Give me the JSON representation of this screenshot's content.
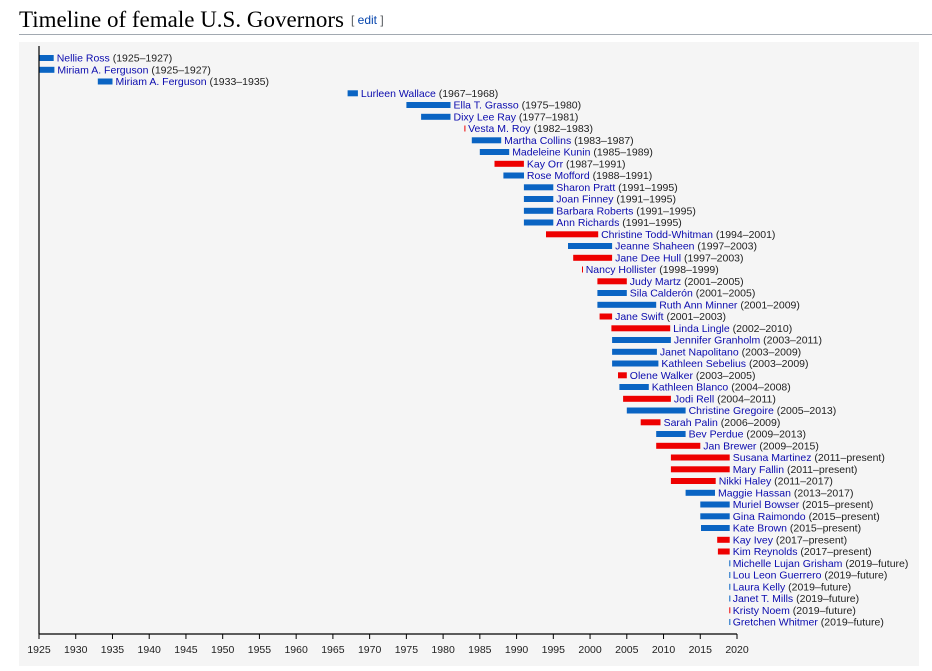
{
  "heading": {
    "title": "Timeline of female U.S. Governors",
    "edit_open": "[ ",
    "edit_label": "edit",
    "edit_close": " ]"
  },
  "colors": {
    "democrat": "#0a64c3",
    "republican": "#ee0000",
    "link": "#0b0bae",
    "text": "#222222"
  },
  "chart_data": {
    "type": "bar",
    "subtype": "timeline-gantt",
    "title": "Timeline of female U.S. Governors",
    "xlabel": "",
    "ylabel": "",
    "xlim": [
      1925,
      2020
    ],
    "xticks": [
      1925,
      1930,
      1935,
      1940,
      1945,
      1950,
      1955,
      1960,
      1965,
      1970,
      1975,
      1980,
      1985,
      1990,
      1995,
      2000,
      2005,
      2010,
      2015,
      2020
    ],
    "grid": false,
    "legend": "none",
    "series": [
      {
        "name": "Nellie Ross",
        "label": "(1925–1927)",
        "start": 1925.0,
        "end": 1927.0,
        "party": "democrat"
      },
      {
        "name": "Miriam A. Ferguson",
        "label": "(1925–1927)",
        "start": 1925.0,
        "end": 1927.1,
        "party": "democrat"
      },
      {
        "name": "Miriam A. Ferguson",
        "label": "(1933–1935)",
        "start": 1933.0,
        "end": 1935.0,
        "party": "democrat"
      },
      {
        "name": "Lurleen Wallace",
        "label": "(1967–1968)",
        "start": 1967.0,
        "end": 1968.4,
        "party": "democrat"
      },
      {
        "name": "Ella T. Grasso",
        "label": "(1975–1980)",
        "start": 1975.0,
        "end": 1981.0,
        "party": "democrat"
      },
      {
        "name": "Dixy Lee Ray",
        "label": "(1977–1981)",
        "start": 1977.0,
        "end": 1981.0,
        "party": "democrat"
      },
      {
        "name": "Vesta M. Roy",
        "label": "(1982–1983)",
        "start": 1982.9,
        "end": 1983.0,
        "party": "republican"
      },
      {
        "name": "Martha Collins",
        "label": "(1983–1987)",
        "start": 1983.9,
        "end": 1987.9,
        "party": "democrat"
      },
      {
        "name": "Madeleine Kunin",
        "label": "(1985–1989)",
        "start": 1985.0,
        "end": 1989.0,
        "party": "democrat"
      },
      {
        "name": "Kay Orr",
        "label": "(1987–1991)",
        "start": 1987.0,
        "end": 1991.0,
        "party": "republican"
      },
      {
        "name": "Rose Mofford",
        "label": "(1988–1991)",
        "start": 1988.2,
        "end": 1991.0,
        "party": "democrat"
      },
      {
        "name": "Sharon Pratt",
        "label": "(1991–1995)",
        "start": 1991.0,
        "end": 1995.0,
        "party": "democrat"
      },
      {
        "name": "Joan Finney",
        "label": "(1991–1995)",
        "start": 1991.0,
        "end": 1995.0,
        "party": "democrat"
      },
      {
        "name": "Barbara Roberts",
        "label": "(1991–1995)",
        "start": 1991.0,
        "end": 1995.0,
        "party": "democrat"
      },
      {
        "name": "Ann Richards",
        "label": "(1991–1995)",
        "start": 1991.0,
        "end": 1995.0,
        "party": "democrat"
      },
      {
        "name": "Christine Todd-Whitman",
        "label": "(1994–2001)",
        "start": 1994.0,
        "end": 2001.1,
        "party": "republican"
      },
      {
        "name": "Jeanne Shaheen",
        "label": "(1997–2003)",
        "start": 1997.0,
        "end": 2003.0,
        "party": "democrat"
      },
      {
        "name": "Jane Dee Hull",
        "label": "(1997–2003)",
        "start": 1997.7,
        "end": 2003.0,
        "party": "republican"
      },
      {
        "name": "Nancy Hollister",
        "label": "(1998–1999)",
        "start": 1998.9,
        "end": 1999.0,
        "party": "republican"
      },
      {
        "name": "Judy Martz",
        "label": "(2001–2005)",
        "start": 2001.0,
        "end": 2005.0,
        "party": "republican"
      },
      {
        "name": "Sila Calderón",
        "label": "(2001–2005)",
        "start": 2001.0,
        "end": 2005.0,
        "party": "democrat"
      },
      {
        "name": "Ruth Ann Minner",
        "label": "(2001–2009)",
        "start": 2001.0,
        "end": 2009.0,
        "party": "democrat"
      },
      {
        "name": "Jane Swift",
        "label": "(2001–2003)",
        "start": 2001.3,
        "end": 2003.0,
        "party": "republican"
      },
      {
        "name": "Linda Lingle",
        "label": "(2002–2010)",
        "start": 2002.9,
        "end": 2010.9,
        "party": "republican"
      },
      {
        "name": "Jennifer Granholm",
        "label": "(2003–2011)",
        "start": 2003.0,
        "end": 2011.0,
        "party": "democrat"
      },
      {
        "name": "Janet Napolitano",
        "label": "(2003–2009)",
        "start": 2003.0,
        "end": 2009.1,
        "party": "democrat"
      },
      {
        "name": "Kathleen Sebelius",
        "label": "(2003–2009)",
        "start": 2003.0,
        "end": 2009.3,
        "party": "democrat"
      },
      {
        "name": "Olene Walker",
        "label": "(2003–2005)",
        "start": 2003.8,
        "end": 2005.0,
        "party": "republican"
      },
      {
        "name": "Kathleen Blanco",
        "label": "(2004–2008)",
        "start": 2004.0,
        "end": 2008.0,
        "party": "democrat"
      },
      {
        "name": "Jodi Rell",
        "label": "(2004–2011)",
        "start": 2004.5,
        "end": 2011.0,
        "party": "republican"
      },
      {
        "name": "Christine Gregoire",
        "label": "(2005–2013)",
        "start": 2005.0,
        "end": 2013.0,
        "party": "democrat"
      },
      {
        "name": "Sarah Palin",
        "label": "(2006–2009)",
        "start": 2006.9,
        "end": 2009.6,
        "party": "republican"
      },
      {
        "name": "Bev Perdue",
        "label": "(2009–2013)",
        "start": 2009.0,
        "end": 2013.0,
        "party": "democrat"
      },
      {
        "name": "Jan Brewer",
        "label": "(2009–2015)",
        "start": 2009.0,
        "end": 2015.0,
        "party": "republican"
      },
      {
        "name": "Susana Martinez",
        "label": "(2011–present)",
        "start": 2011.0,
        "end": 2019.0,
        "party": "republican"
      },
      {
        "name": "Mary Fallin",
        "label": "(2011–present)",
        "start": 2011.0,
        "end": 2019.0,
        "party": "republican"
      },
      {
        "name": "Nikki Haley",
        "label": "(2011–2017)",
        "start": 2011.0,
        "end": 2017.1,
        "party": "republican"
      },
      {
        "name": "Maggie Hassan",
        "label": "(2013–2017)",
        "start": 2013.0,
        "end": 2017.0,
        "party": "democrat"
      },
      {
        "name": "Muriel Bowser",
        "label": "(2015–present)",
        "start": 2015.0,
        "end": 2019.0,
        "party": "democrat"
      },
      {
        "name": "Gina Raimondo",
        "label": "(2015–present)",
        "start": 2015.0,
        "end": 2019.0,
        "party": "democrat"
      },
      {
        "name": "Kate Brown",
        "label": "(2015–present)",
        "start": 2015.1,
        "end": 2019.0,
        "party": "democrat"
      },
      {
        "name": "Kay Ivey",
        "label": "(2017–present)",
        "start": 2017.3,
        "end": 2019.0,
        "party": "republican"
      },
      {
        "name": "Kim Reynolds",
        "label": "(2017–present)",
        "start": 2017.4,
        "end": 2019.0,
        "party": "republican"
      },
      {
        "name": "Michelle Lujan Grisham",
        "label": "(2019–future)",
        "start": 2018.95,
        "end": 2019.0,
        "party": "democrat"
      },
      {
        "name": "Lou Leon Guerrero",
        "label": "(2019–future)",
        "start": 2018.95,
        "end": 2019.0,
        "party": "democrat"
      },
      {
        "name": "Laura Kelly",
        "label": "(2019–future)",
        "start": 2018.95,
        "end": 2019.0,
        "party": "democrat"
      },
      {
        "name": "Janet T. Mills",
        "label": "(2019–future)",
        "start": 2018.95,
        "end": 2019.0,
        "party": "democrat"
      },
      {
        "name": "Kristy Noem",
        "label": "(2019–future)",
        "start": 2018.95,
        "end": 2019.0,
        "party": "republican"
      },
      {
        "name": "Gretchen Whitmer",
        "label": "(2019–future)",
        "start": 2018.95,
        "end": 2019.0,
        "party": "democrat"
      }
    ]
  }
}
